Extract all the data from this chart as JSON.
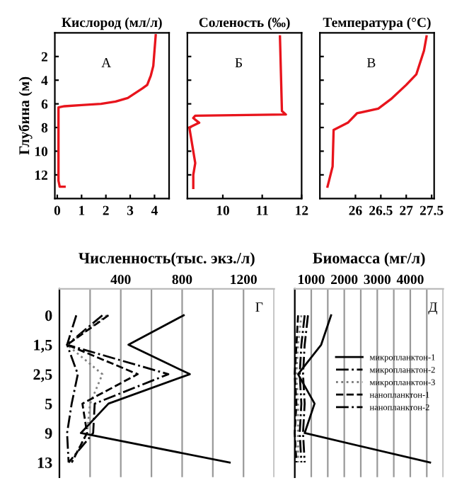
{
  "chart_data": [
    {
      "type": "line",
      "orientation": "horizontal",
      "title": "Кислород (мл/л)",
      "ylabel": "Глубина (м)",
      "annotations": [
        "А"
      ],
      "xlim": [
        -0.1,
        4.6
      ],
      "xticks": [
        0,
        1,
        2,
        3,
        4
      ],
      "ylim": [
        14,
        0
      ],
      "yticks": [
        2,
        4,
        6,
        8,
        10,
        12
      ],
      "grid": false,
      "series": [
        {
          "color": "#e8141c",
          "line_style": "solid",
          "x": [
            0.2,
            1.5,
            2.8,
            3.6,
            4.4,
            4.7,
            5.1,
            5.5,
            5.8,
            6.0,
            6.1,
            6.2,
            6.3,
            8,
            12.5,
            13,
            13
          ],
          "values": [
            4.05,
            4.0,
            3.95,
            3.85,
            3.7,
            3.5,
            3.2,
            2.9,
            2.4,
            1.8,
            1.0,
            0.3,
            0.05,
            0.05,
            0.05,
            0.1,
            0.3
          ]
        }
      ]
    },
    {
      "type": "line",
      "orientation": "horizontal",
      "title": "Соленость (‰)",
      "annotations": [
        "Б"
      ],
      "xlim": [
        9.1,
        12
      ],
      "xticks": [
        10,
        11,
        12
      ],
      "ylim": [
        14,
        0
      ],
      "yticks": [
        2,
        4,
        6,
        8,
        10,
        12
      ],
      "tick_labels": "x",
      "grid": false,
      "series": [
        {
          "color": "#e8141c",
          "line_style": "solid",
          "x": [
            0.3,
            6.6,
            6.9,
            7.0,
            7.2,
            7.6,
            8.0,
            9,
            11,
            12,
            13.1
          ],
          "values": [
            11.45,
            11.5,
            11.6,
            9.3,
            9.25,
            9.4,
            9.15,
            9.2,
            9.3,
            9.25,
            9.25
          ]
        }
      ]
    },
    {
      "type": "line",
      "orientation": "horizontal",
      "title": "Температура (°C)",
      "annotations": [
        "В"
      ],
      "xlim": [
        25.3,
        27.55
      ],
      "xticks": [
        26,
        26.5,
        27,
        27.5
      ],
      "ylim": [
        14,
        0
      ],
      "yticks": [
        2,
        4,
        6,
        8,
        10,
        12
      ],
      "tick_labels": "x",
      "grid": false,
      "series": [
        {
          "color": "#e8141c",
          "line_style": "solid",
          "x": [
            0.3,
            1.5,
            3.5,
            4.4,
            5.6,
            6.4,
            6.8,
            7.6,
            8.2,
            11.3,
            13
          ],
          "values": [
            27.4,
            27.35,
            27.2,
            27.0,
            26.7,
            26.45,
            26.03,
            25.85,
            25.57,
            25.55,
            25.45
          ]
        }
      ]
    },
    {
      "type": "line",
      "orientation": "horizontal",
      "title": "Численность(тыс. экз./л)",
      "annotations": [
        "Г"
      ],
      "categories": [
        "0",
        "1,5",
        "2,5",
        "5",
        "9",
        "13"
      ],
      "xlim": [
        0,
        1400
      ],
      "xticks": [
        {
          "value": 0,
          "label": null
        },
        {
          "value": 200,
          "label": null
        },
        400,
        {
          "value": 600,
          "label": null
        },
        800,
        {
          "value": 1000,
          "label": null
        },
        1200,
        {
          "value": 1400,
          "label": null
        }
      ],
      "grid": "x",
      "series": [
        {
          "color": "#000000",
          "line_style": "solid",
          "values": [
            810,
            450,
            850,
            320,
            140,
            1110
          ]
        },
        {
          "color": "#000000",
          "line_style": "dashdot",
          "values": [
            280,
            50,
            710,
            230,
            220,
            60
          ]
        },
        {
          "color": "#808080",
          "line_style": "dotted",
          "values": [
            310,
            50,
            280,
            200,
            180,
            80
          ]
        },
        {
          "color": "#000000",
          "line_style": "dashed",
          "values": [
            320,
            50,
            510,
            150,
            180,
            80
          ]
        },
        {
          "color": "#000000",
          "line_style": "dashdot",
          "values": [
            110,
            50,
            120,
            80,
            50,
            60
          ]
        }
      ]
    },
    {
      "type": "line",
      "orientation": "horizontal",
      "title": "Биомасса (мг/л)",
      "annotations": [
        "Д"
      ],
      "categories": [
        "0",
        "1,5",
        "2,5",
        "5",
        "9",
        "13"
      ],
      "tick_labels": "x",
      "xlim": [
        500,
        5000
      ],
      "xticks": [
        {
          "value": 500,
          "label": null
        },
        1000,
        {
          "value": 1500,
          "label": null
        },
        2000,
        {
          "value": 2500,
          "label": null
        },
        3000,
        {
          "value": 3500,
          "label": null
        },
        4000,
        {
          "value": 4500,
          "label": null
        },
        {
          "value": 5000,
          "label": null
        }
      ],
      "grid": "x",
      "legend": "center right",
      "series": [
        {
          "name": "микропланктон-1",
          "color": "#000000",
          "line_style": "solid",
          "values": [
            1600,
            1300,
            600,
            1100,
            800,
            4600
          ]
        },
        {
          "name": "микропланктон-2",
          "color": "#000000",
          "line_style": "dashdot",
          "values": [
            900,
            800,
            750,
            800,
            750,
            800
          ]
        },
        {
          "name": "микропланктон-3",
          "color": "#808080",
          "line_style": "dotted",
          "values": [
            700,
            600,
            550,
            600,
            600,
            600
          ]
        },
        {
          "name": "нанопланктон-1",
          "color": "#000000",
          "line_style": "dashed",
          "values": [
            600,
            550,
            500,
            550,
            500,
            550
          ]
        },
        {
          "name": "нанопланктон-2",
          "color": "#000000",
          "line_style": "dashdot",
          "values": [
            800,
            700,
            650,
            700,
            650,
            700
          ]
        }
      ]
    }
  ]
}
